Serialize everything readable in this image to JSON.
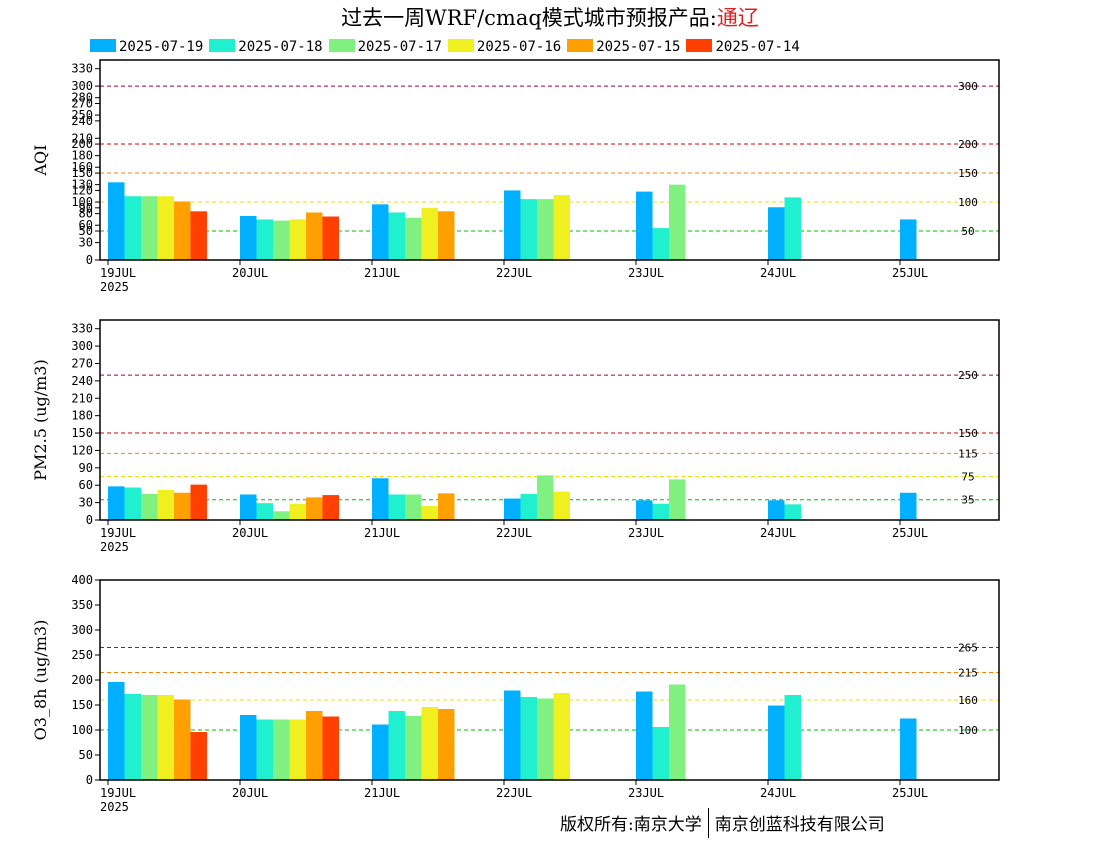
{
  "header": {
    "title": "过去一周WRF/cmaq模式城市预报产品:",
    "city": "通辽"
  },
  "legend": [
    {
      "label": "2025-07-19",
      "color": "#00b0ff"
    },
    {
      "label": "2025-07-18",
      "color": "#20f0d0"
    },
    {
      "label": "2025-07-17",
      "color": "#80f080"
    },
    {
      "label": "2025-07-16",
      "color": "#f0f020"
    },
    {
      "label": "2025-07-15",
      "color": "#ffa000"
    },
    {
      "label": "2025-07-14",
      "color": "#ff4000"
    }
  ],
  "footer": {
    "left": "版权所有:南京大学",
    "right": "南京创蓝科技有限公司"
  },
  "chart_data": [
    {
      "type": "bar",
      "ylabel": "AQI",
      "ylim": [
        0,
        345
      ],
      "yticks": [
        0,
        30,
        50,
        60,
        80,
        90,
        100,
        120,
        130,
        150,
        160,
        180,
        200,
        210,
        240,
        250,
        270,
        280,
        300,
        330
      ],
      "yticklabels": [
        "0",
        "30",
        "50",
        "60",
        "80",
        "90",
        "100",
        "120",
        "130",
        "150",
        "160",
        "180",
        "200",
        "210",
        "240",
        "250",
        "270",
        "280",
        "300",
        "330"
      ],
      "categories": [
        "19JUL",
        "20JUL",
        "21JUL",
        "22JUL",
        "23JUL",
        "24JUL",
        "25JUL"
      ],
      "year_label": "2025",
      "series": [
        {
          "name": "2025-07-19",
          "values": [
            134,
            76,
            96,
            120,
            118,
            91,
            70
          ]
        },
        {
          "name": "2025-07-18",
          "values": [
            110,
            70,
            82,
            105,
            55,
            108,
            null
          ]
        },
        {
          "name": "2025-07-17",
          "values": [
            110,
            68,
            73,
            105,
            130,
            null,
            null
          ]
        },
        {
          "name": "2025-07-16",
          "values": [
            110,
            70,
            90,
            112,
            null,
            null,
            null
          ]
        },
        {
          "name": "2025-07-15",
          "values": [
            101,
            82,
            84,
            null,
            null,
            null,
            null
          ]
        },
        {
          "name": "2025-07-14",
          "values": [
            84,
            75,
            null,
            null,
            null,
            null,
            null
          ]
        }
      ],
      "thresholds": [
        {
          "value": 50,
          "label": "50",
          "color": "#00c000"
        },
        {
          "value": 100,
          "label": "100",
          "color": "#f0e000"
        },
        {
          "value": 150,
          "label": "150",
          "color": "#ff8000"
        },
        {
          "value": 200,
          "label": "200",
          "color": "#e00000"
        },
        {
          "value": 300,
          "label": "300",
          "color": "#a00040"
        }
      ]
    },
    {
      "type": "bar",
      "ylabel": "PM2.5 (ug/m3)",
      "ylim": [
        0,
        345
      ],
      "yticks": [
        0,
        30,
        60,
        90,
        120,
        150,
        180,
        210,
        240,
        270,
        300,
        330
      ],
      "yticklabels": [
        "0",
        "30",
        "60",
        "90",
        "120",
        "150",
        "180",
        "210",
        "240",
        "270",
        "300",
        "330"
      ],
      "categories": [
        "19JUL",
        "20JUL",
        "21JUL",
        "22JUL",
        "23JUL",
        "24JUL",
        "25JUL"
      ],
      "year_label": "2025",
      "series": [
        {
          "name": "2025-07-19",
          "values": [
            58,
            44,
            72,
            37,
            34,
            34,
            47
          ]
        },
        {
          "name": "2025-07-18",
          "values": [
            56,
            29,
            44,
            45,
            28,
            27,
            null
          ]
        },
        {
          "name": "2025-07-17",
          "values": [
            45,
            15,
            44,
            77,
            70,
            null,
            null
          ]
        },
        {
          "name": "2025-07-16",
          "values": [
            52,
            28,
            24,
            49,
            null,
            null,
            null
          ]
        },
        {
          "name": "2025-07-15",
          "values": [
            47,
            39,
            46,
            null,
            null,
            null,
            null
          ]
        },
        {
          "name": "2025-07-14",
          "values": [
            61,
            43,
            null,
            null,
            null,
            null,
            null
          ]
        }
      ],
      "thresholds": [
        {
          "value": 35,
          "label": "35",
          "color": "#00c000"
        },
        {
          "value": 75,
          "label": "75",
          "color": "#f0e000"
        },
        {
          "value": 115,
          "label": "115",
          "color": "#ff8000"
        },
        {
          "value": 150,
          "label": "150",
          "color": "#e00000"
        },
        {
          "value": 250,
          "label": "250",
          "color": "#a00040"
        }
      ]
    },
    {
      "type": "bar",
      "ylabel": "O3_8h (ug/m3)",
      "ylim": [
        0,
        400
      ],
      "yticks": [
        0,
        50,
        100,
        150,
        200,
        250,
        300,
        350,
        400
      ],
      "yticklabels": [
        "0",
        "50",
        "100",
        "150",
        "200",
        "250",
        "300",
        "350",
        "400"
      ],
      "categories": [
        "19JUL",
        "20JUL",
        "21JUL",
        "22JUL",
        "23JUL",
        "24JUL",
        "25JUL"
      ],
      "year_label": "2025",
      "series": [
        {
          "name": "2025-07-19",
          "values": [
            196,
            130,
            111,
            179,
            177,
            149,
            123
          ]
        },
        {
          "name": "2025-07-18",
          "values": [
            172,
            121,
            138,
            166,
            106,
            170,
            null
          ]
        },
        {
          "name": "2025-07-17",
          "values": [
            170,
            121,
            128,
            163,
            191,
            null,
            null
          ]
        },
        {
          "name": "2025-07-16",
          "values": [
            170,
            121,
            146,
            174,
            null,
            null,
            null
          ]
        },
        {
          "name": "2025-07-15",
          "values": [
            161,
            138,
            142,
            null,
            null,
            null,
            null
          ]
        },
        {
          "name": "2025-07-14",
          "values": [
            96,
            127,
            null,
            null,
            null,
            null,
            null
          ]
        }
      ],
      "thresholds": [
        {
          "value": 100,
          "label": "100",
          "color": "#00c000"
        },
        {
          "value": 160,
          "label": "160",
          "color": "#f0e000"
        },
        {
          "value": 215,
          "label": "215",
          "color": "#ff8000"
        },
        {
          "value": 265,
          "label": "265",
          "color": "#e00000"
        }
      ]
    }
  ]
}
